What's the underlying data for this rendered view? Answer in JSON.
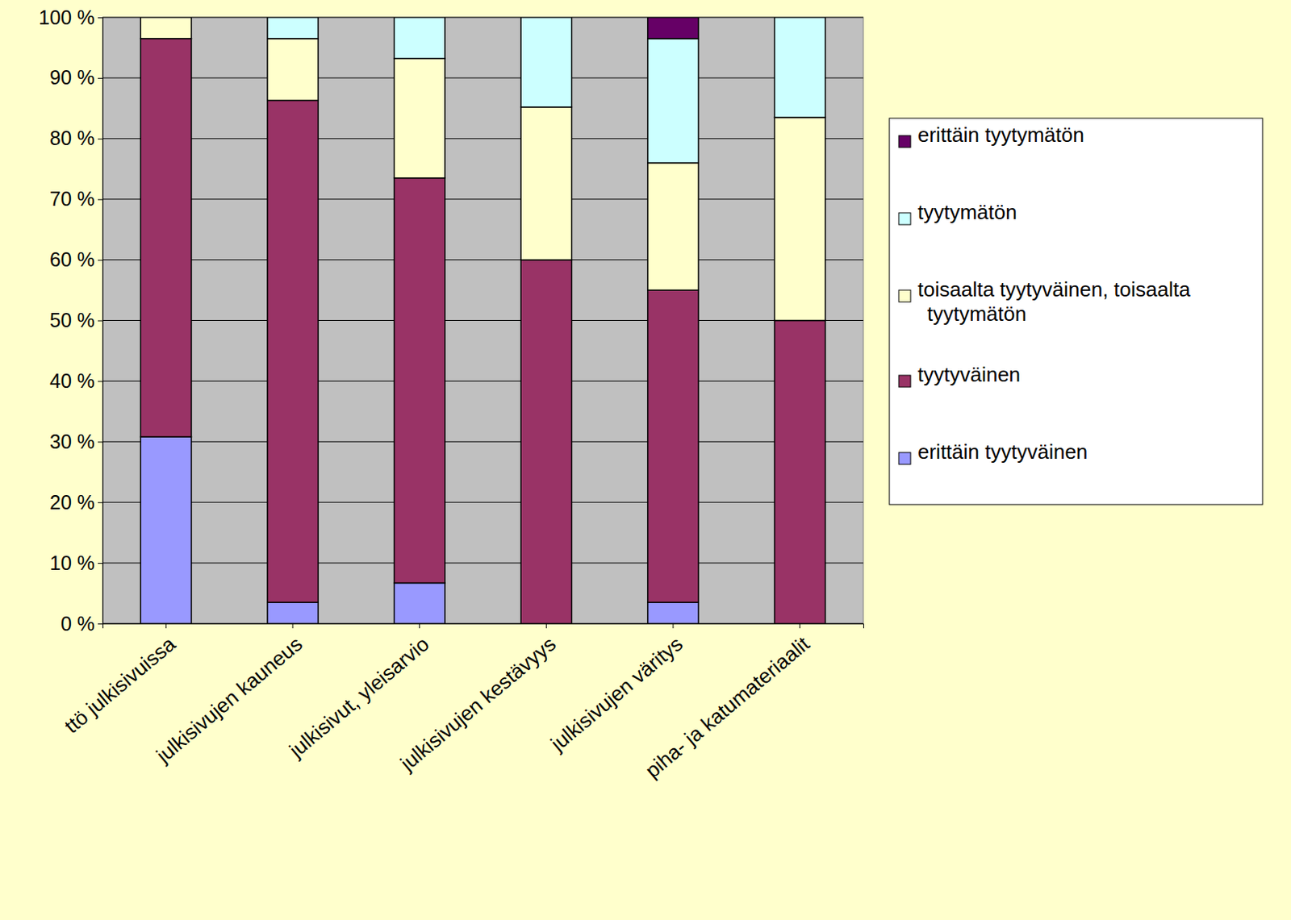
{
  "chart_data": {
    "type": "bar",
    "stacked": true,
    "grid": true,
    "legend": "right",
    "categories": [
      "ttö julkisivuissa",
      "julkisivujen kauneus",
      "julkisivut, yleisarvio",
      "julkisivujen kestävyys",
      "julkisivujen väritys",
      "piha- ja katumateriaalit"
    ],
    "series": [
      {
        "name": "erittäin tyytyväinen",
        "color": "#9999ff",
        "values": [
          30.8,
          3.5,
          6.7,
          0,
          3.5,
          0
        ]
      },
      {
        "name": "tyytyväinen",
        "color": "#993366",
        "values": [
          65.7,
          82.8,
          66.8,
          60,
          51.5,
          50
        ]
      },
      {
        "name": "toisaalta tyytyväinen, toisaalta tyytymätön",
        "color": "#ffffcc",
        "values": [
          3.5,
          10.2,
          19.7,
          25.2,
          21,
          33.5
        ]
      },
      {
        "name": "tyytymätön",
        "color": "#ccffff",
        "values": [
          0,
          3.5,
          6.8,
          14.8,
          20.5,
          16.5
        ]
      },
      {
        "name": "erittäin tyytymätön",
        "color": "#660066",
        "values": [
          0,
          0,
          0,
          0,
          3.5,
          0
        ]
      }
    ],
    "ylim": [
      0,
      100
    ],
    "yticks": [
      {
        "value": 0,
        "label": "0 %"
      },
      {
        "value": 10,
        "label": "10 %"
      },
      {
        "value": 20,
        "label": "20 %"
      },
      {
        "value": 30,
        "label": "30 %"
      },
      {
        "value": 40,
        "label": "40 %"
      },
      {
        "value": 50,
        "label": "50 %"
      },
      {
        "value": 60,
        "label": "60 %"
      },
      {
        "value": 70,
        "label": "70 %"
      },
      {
        "value": 80,
        "label": "80 %"
      },
      {
        "value": 90,
        "label": "90 %"
      },
      {
        "value": 100,
        "label": "100 %"
      }
    ]
  }
}
